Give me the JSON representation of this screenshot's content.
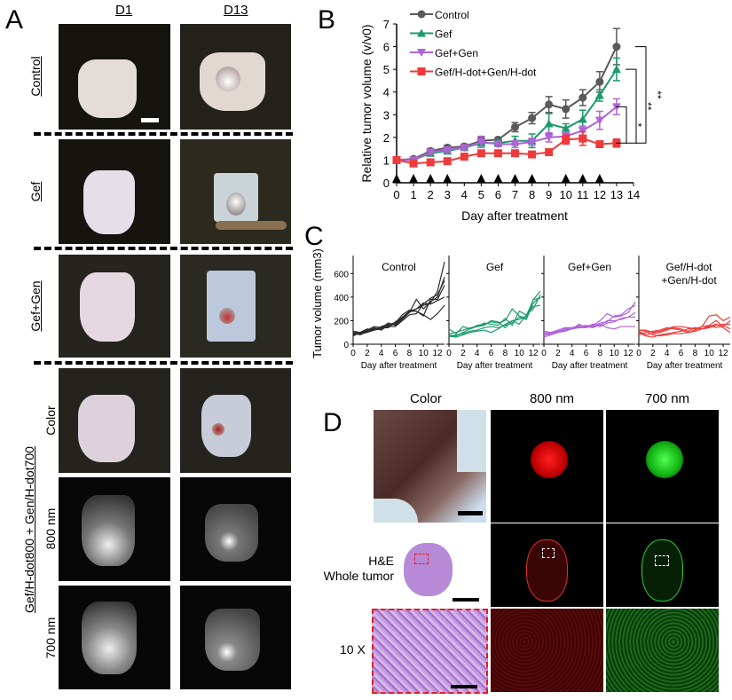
{
  "panel_a": {
    "label": "A",
    "columns": [
      "D1",
      "D13"
    ],
    "rows": [
      "Control",
      "Gef",
      "Gef+Gen"
    ],
    "group_label": "Gef/H-dot800 + Gen/H-dot700",
    "subrows": [
      "Color",
      "800 nm",
      "700 nm"
    ]
  },
  "panel_b": {
    "label": "B"
  },
  "panel_c": {
    "label": "C"
  },
  "panel_d": {
    "label": "D",
    "columns": [
      "Color",
      "800 nm",
      "700 nm"
    ],
    "row_labels": {
      "he_line1": "H&E",
      "he_line2": "Whole tumor",
      "mag": "10 X"
    }
  },
  "chart_data": [
    {
      "type": "line",
      "panel": "B",
      "xlabel": "Day after treatment",
      "ylabel": "Relative tumor volume (v/v0)",
      "xlim": [
        0,
        14
      ],
      "ylim": [
        0,
        7
      ],
      "xticks": [
        0,
        1,
        2,
        3,
        4,
        5,
        6,
        7,
        8,
        9,
        10,
        11,
        12,
        13,
        14
      ],
      "yticks": [
        0,
        1,
        2,
        3,
        4,
        5,
        6,
        7
      ],
      "x": [
        0,
        1,
        2,
        3,
        4,
        5,
        6,
        7,
        8,
        9,
        10,
        11,
        12,
        13
      ],
      "legend_position": "top-left",
      "series": [
        {
          "name": "Control",
          "color": "#5a5a5a",
          "marker": "circle",
          "values": [
            1,
            1.05,
            1.4,
            1.55,
            1.6,
            1.85,
            1.9,
            2.45,
            2.85,
            3.45,
            3.25,
            3.75,
            4.45,
            6.0
          ],
          "error": [
            0,
            0.05,
            0.1,
            0.1,
            0.1,
            0.15,
            0.1,
            0.2,
            0.25,
            0.35,
            0.4,
            0.35,
            0.45,
            0.8
          ]
        },
        {
          "name": "Gef",
          "color": "#1b9a6c",
          "marker": "triangle-up",
          "values": [
            1,
            1.0,
            1.3,
            1.4,
            1.55,
            1.75,
            1.75,
            1.85,
            1.85,
            2.6,
            2.4,
            2.8,
            3.85,
            5.0
          ],
          "error": [
            0,
            0.05,
            0.1,
            0.1,
            0.1,
            0.1,
            0.15,
            0.2,
            0.3,
            0.45,
            0.2,
            0.4,
            0.25,
            0.5
          ]
        },
        {
          "name": "Gef+Gen",
          "color": "#b063d8",
          "marker": "triangle-down",
          "values": [
            1,
            1.0,
            1.35,
            1.45,
            1.55,
            1.8,
            1.7,
            1.7,
            1.8,
            2.0,
            2.05,
            2.3,
            2.75,
            3.35
          ],
          "error": [
            0,
            0.05,
            0.08,
            0.1,
            0.1,
            0.25,
            0.1,
            0.15,
            0.15,
            0.2,
            0.15,
            0.2,
            0.4,
            0.35
          ]
        },
        {
          "name": "Gef/H-dot+Gen/H-dot",
          "color": "#ee3a3a",
          "marker": "square",
          "values": [
            1,
            0.85,
            0.9,
            0.95,
            1.15,
            1.3,
            1.3,
            1.3,
            1.25,
            1.35,
            1.9,
            1.95,
            1.7,
            1.75
          ],
          "error": [
            0,
            0.08,
            0.05,
            0.05,
            0.05,
            0.08,
            0.08,
            0.1,
            0.1,
            0.08,
            0.2,
            0.3,
            0.1,
            0.18
          ]
        }
      ],
      "treatment_days": [
        0,
        1,
        2,
        3,
        5,
        6,
        7,
        8,
        10,
        11,
        12
      ],
      "significance": [
        {
          "from": "Gef+Gen",
          "to": "Gef/H-dot+Gen/H-dot",
          "label": "*"
        },
        {
          "from": "Gef",
          "to": "Gef/H-dot+Gen/H-dot",
          "label": "**"
        },
        {
          "from": "Control",
          "to": "Gef/H-dot+Gen/H-dot",
          "label": "**"
        }
      ]
    },
    {
      "type": "line",
      "panel": "C",
      "ylabel": "Tumor volume (mm3)",
      "xlabel": "Day after treatment",
      "xlim": [
        0,
        13
      ],
      "ylim": [
        0,
        700
      ],
      "xticks": [
        0,
        2,
        4,
        6,
        8,
        10,
        12
      ],
      "yticks": [
        0,
        200,
        400,
        600
      ],
      "x": [
        0,
        1,
        2,
        3,
        4,
        5,
        6,
        7,
        8,
        9,
        10,
        11,
        12,
        13
      ],
      "subplots": [
        {
          "title": "Control",
          "color": "#2a2a2a",
          "curves": [
            [
              90,
              85,
              110,
              130,
              140,
              160,
              170,
              220,
              280,
              300,
              330,
              350,
              450,
              700
            ],
            [
              100,
              95,
              120,
              150,
              140,
              180,
              160,
              210,
              270,
              380,
              300,
              360,
              400,
              570
            ],
            [
              80,
              90,
              100,
              120,
              130,
              150,
              150,
              200,
              250,
              260,
              340,
              390,
              420,
              540
            ],
            [
              70,
              100,
              110,
              140,
              120,
              160,
              170,
              230,
              280,
              280,
              240,
              380,
              380,
              500
            ],
            [
              110,
              100,
              130,
              120,
              150,
              170,
              180,
              250,
              290,
              280,
              250,
              210,
              260,
              330
            ],
            [
              95,
              80,
              105,
              125,
              140,
              140,
              190,
              230,
              270,
              300,
              350,
              340,
              370,
              400
            ]
          ]
        },
        {
          "title": "Gef",
          "color": "#1b9a6c",
          "curves": [
            [
              130,
              90,
              150,
              130,
              160,
              170,
              190,
              180,
              200,
              300,
              240,
              220,
              380,
              450
            ],
            [
              80,
              70,
              100,
              130,
              150,
              180,
              170,
              160,
              220,
              160,
              280,
              250,
              300,
              420
            ],
            [
              60,
              80,
              90,
              110,
              120,
              140,
              150,
              140,
              160,
              180,
              230,
              210,
              350,
              400
            ],
            [
              90,
              100,
              120,
              140,
              150,
              160,
              200,
              190,
              140,
              200,
              170,
              250,
              320,
              330
            ],
            [
              70,
              60,
              80,
              100,
              110,
              120,
              100,
              130,
              170,
              200,
              210,
              240,
              380,
              390
            ]
          ]
        },
        {
          "title": "Gef+Gen",
          "color": "#b063d8",
          "curves": [
            [
              100,
              90,
              110,
              120,
              130,
              170,
              140,
              160,
              200,
              260,
              230,
              240,
              270,
              360
            ],
            [
              70,
              100,
              110,
              130,
              140,
              150,
              160,
              150,
              180,
              190,
              240,
              250,
              300,
              330
            ],
            [
              110,
              100,
              120,
              140,
              140,
              160,
              150,
              170,
              160,
              200,
              200,
              210,
              230,
              270
            ],
            [
              90,
              80,
              100,
              120,
              130,
              150,
              150,
              140,
              170,
              140,
              130,
              150,
              150,
              150
            ],
            [
              60,
              80,
              100,
              110,
              130,
              140,
              140,
              160,
              150,
              180,
              190,
              220,
              230,
              230
            ]
          ]
        },
        {
          "title": "Gef/H-dot\n+Gen/H-dot",
          "color": "#ee3a3a",
          "curves": [
            [
              120,
              120,
              100,
              110,
              130,
              150,
              150,
              140,
              130,
              150,
              240,
              250,
              200,
              230
            ],
            [
              110,
              80,
              90,
              100,
              120,
              140,
              130,
              110,
              140,
              130,
              160,
              200,
              150,
              200
            ],
            [
              100,
              70,
              60,
              80,
              90,
              100,
              110,
              130,
              140,
              130,
              140,
              160,
              170,
              170
            ],
            [
              120,
              110,
              80,
              70,
              80,
              90,
              90,
              100,
              120,
              150,
              160,
              140,
              160,
              130
            ],
            [
              80,
              100,
              110,
              120,
              140,
              130,
              120,
              100,
              110,
              130,
              150,
              170,
              140,
              100
            ]
          ]
        }
      ]
    }
  ]
}
